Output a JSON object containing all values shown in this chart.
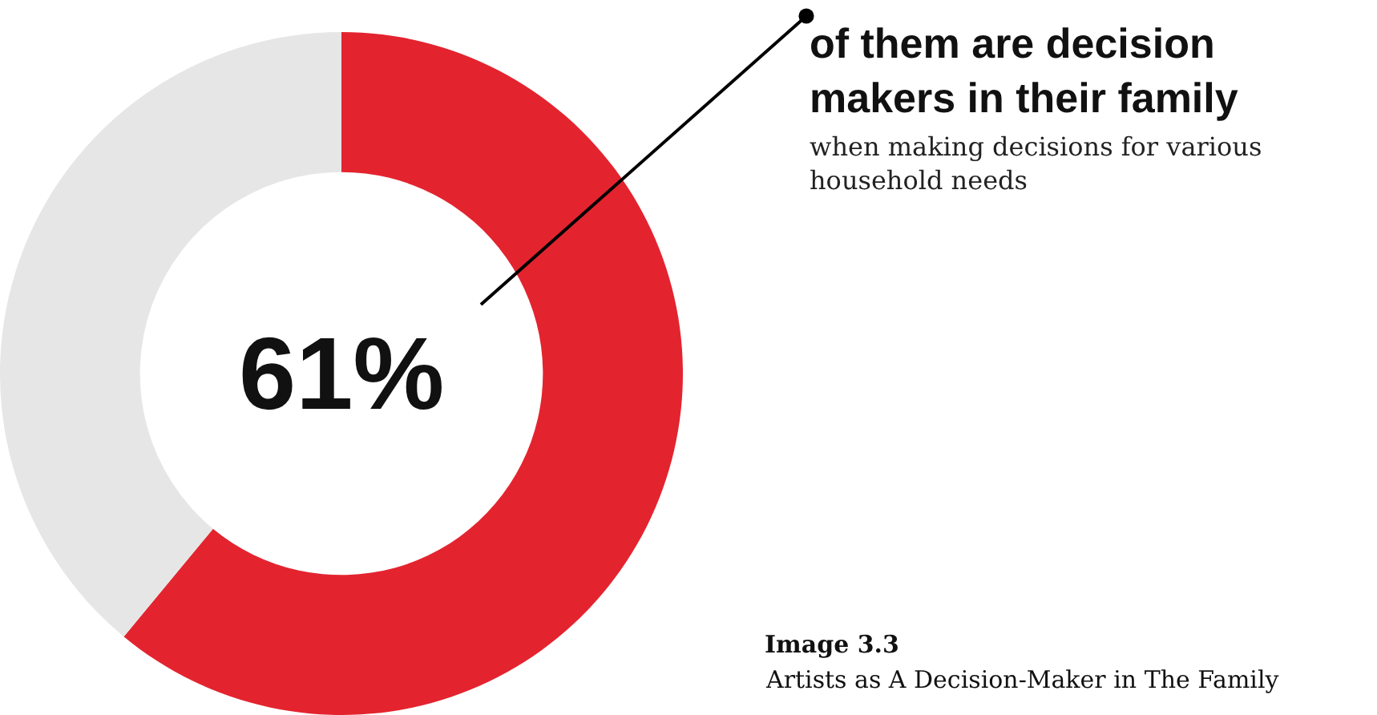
{
  "chart_data": {
    "type": "donut",
    "title": "of them are decision makers in their family",
    "subtitle": "when making decisions for various household needs",
    "categories": [
      null,
      null
    ],
    "values": [
      61,
      39
    ],
    "colors": [
      "#e3242f",
      "#e6e6e6"
    ],
    "annotations": [
      "61%",
      "Image 3.3",
      "Artists as A Decision-Maker in The Family"
    ],
    "legend": false
  }
}
